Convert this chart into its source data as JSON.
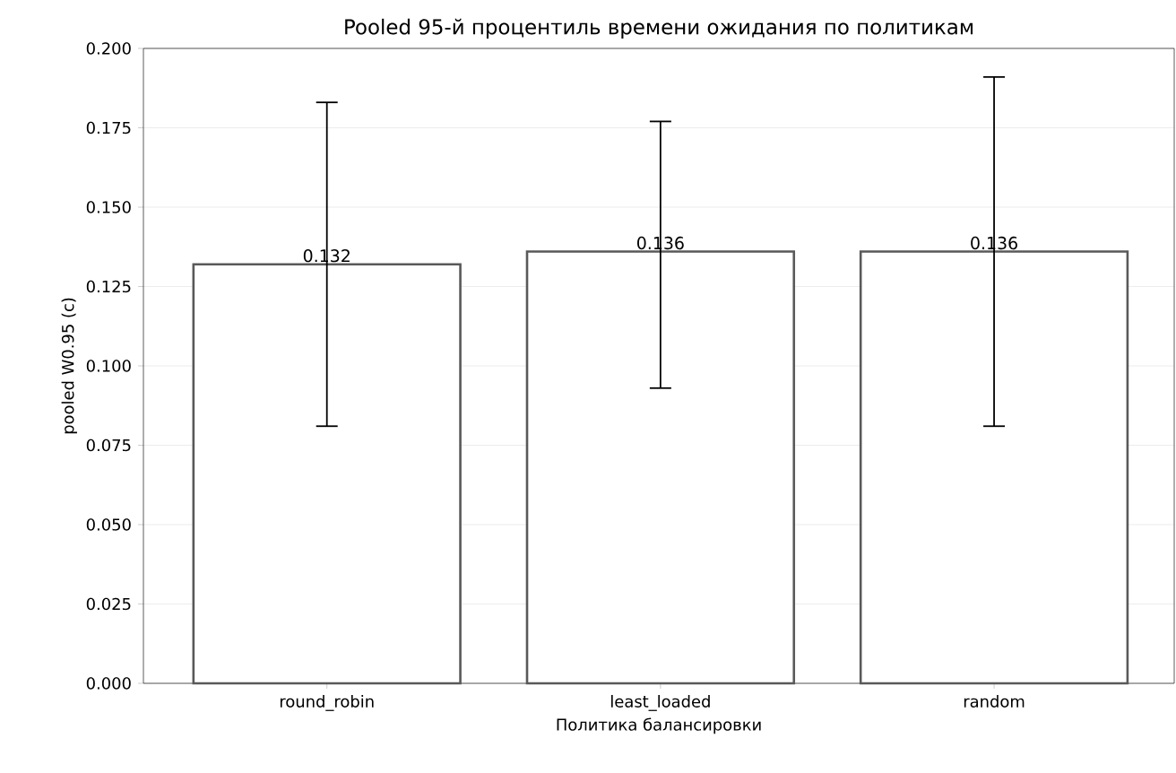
{
  "chart_data": {
    "type": "bar",
    "title": "Pooled 95-й процентиль времени ожидания по политикам",
    "xlabel": "Политика балансировки",
    "ylabel": "pooled W0.95 (с)",
    "categories": [
      "round_robin",
      "least_loaded",
      "random"
    ],
    "values": [
      0.132,
      0.136,
      0.136
    ],
    "errors": [
      [
        0.081,
        0.183
      ],
      [
        0.093,
        0.177
      ],
      [
        0.081,
        0.191
      ]
    ],
    "color": "#ffffff",
    "data_labels": true,
    "ylim": [
      0,
      0.2
    ],
    "yticks": [
      {
        "value": 0,
        "label": "0.000"
      },
      {
        "value": 0.025,
        "label": "0.025"
      },
      {
        "value": 0.05,
        "label": "0.050"
      },
      {
        "value": 0.075,
        "label": "0.075"
      },
      {
        "value": 0.1,
        "label": "0.100"
      },
      {
        "value": 0.125,
        "label": "0.125"
      },
      {
        "value": 0.15,
        "label": "0.150"
      },
      {
        "value": 0.175,
        "label": "0.175"
      },
      {
        "value": 0.2,
        "label": "0.200"
      }
    ],
    "grid": "y"
  }
}
